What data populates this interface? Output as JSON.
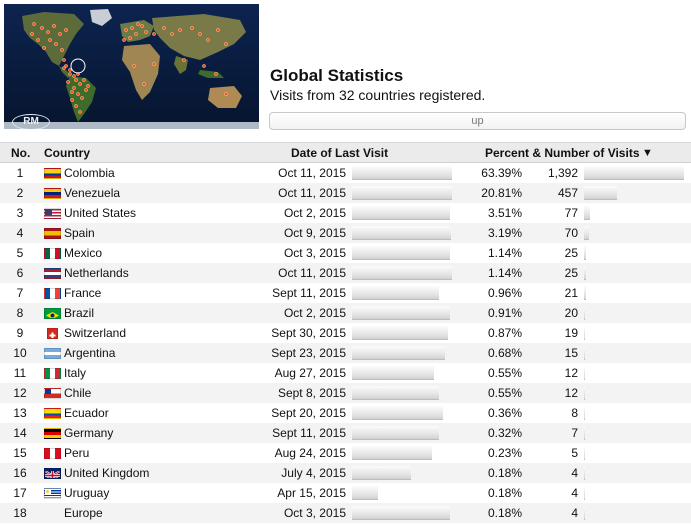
{
  "header": {
    "title": "Global Statistics",
    "subtitle": "Visits from 32 countries registered.",
    "up_button": "up"
  },
  "map": {
    "logo_text": "RM"
  },
  "table": {
    "columns": {
      "no": "No.",
      "country": "Country",
      "date": "Date of Last Visit",
      "percent_visits": "Percent & Number of Visits",
      "sort_icon": "▼"
    },
    "rows": [
      {
        "no": "1",
        "country": "Colombia",
        "flag": "colombia",
        "date": "Oct 11, 2015",
        "recency": 1.0,
        "percent": "63.39%",
        "visits": "1,392",
        "visits_n": 1392
      },
      {
        "no": "2",
        "country": "Venezuela",
        "flag": "venezuela",
        "date": "Oct 11, 2015",
        "recency": 1.0,
        "percent": "20.81%",
        "visits": "457",
        "visits_n": 457
      },
      {
        "no": "3",
        "country": "United States",
        "flag": "usa",
        "date": "Oct 2, 2015",
        "recency": 0.98,
        "percent": "3.51%",
        "visits": "77",
        "visits_n": 77
      },
      {
        "no": "4",
        "country": "Spain",
        "flag": "spain",
        "date": "Oct 9, 2015",
        "recency": 0.99,
        "percent": "3.19%",
        "visits": "70",
        "visits_n": 70
      },
      {
        "no": "5",
        "country": "Mexico",
        "flag": "mexico",
        "date": "Oct 3, 2015",
        "recency": 0.98,
        "percent": "1.14%",
        "visits": "25",
        "visits_n": 25
      },
      {
        "no": "6",
        "country": "Netherlands",
        "flag": "netherlands",
        "date": "Oct 11, 2015",
        "recency": 1.0,
        "percent": "1.14%",
        "visits": "25",
        "visits_n": 25
      },
      {
        "no": "7",
        "country": "France",
        "flag": "france",
        "date": "Sept 11, 2015",
        "recency": 0.87,
        "percent": "0.96%",
        "visits": "21",
        "visits_n": 21
      },
      {
        "no": "8",
        "country": "Brazil",
        "flag": "brazil",
        "date": "Oct 2, 2015",
        "recency": 0.98,
        "percent": "0.91%",
        "visits": "20",
        "visits_n": 20
      },
      {
        "no": "9",
        "country": "Switzerland",
        "flag": "switzerland",
        "date": "Sept 30, 2015",
        "recency": 0.96,
        "percent": "0.87%",
        "visits": "19",
        "visits_n": 19
      },
      {
        "no": "10",
        "country": "Argentina",
        "flag": "argentina",
        "date": "Sept 23, 2015",
        "recency": 0.93,
        "percent": "0.68%",
        "visits": "15",
        "visits_n": 15
      },
      {
        "no": "11",
        "country": "Italy",
        "flag": "italy",
        "date": "Aug 27, 2015",
        "recency": 0.82,
        "percent": "0.55%",
        "visits": "12",
        "visits_n": 12
      },
      {
        "no": "12",
        "country": "Chile",
        "flag": "chile",
        "date": "Sept 8, 2015",
        "recency": 0.87,
        "percent": "0.55%",
        "visits": "12",
        "visits_n": 12
      },
      {
        "no": "13",
        "country": "Ecuador",
        "flag": "ecuador",
        "date": "Sept 20, 2015",
        "recency": 0.91,
        "percent": "0.36%",
        "visits": "8",
        "visits_n": 8
      },
      {
        "no": "14",
        "country": "Germany",
        "flag": "germany",
        "date": "Sept 11, 2015",
        "recency": 0.87,
        "percent": "0.32%",
        "visits": "7",
        "visits_n": 7
      },
      {
        "no": "15",
        "country": "Peru",
        "flag": "peru",
        "date": "Aug 24, 2015",
        "recency": 0.8,
        "percent": "0.23%",
        "visits": "5",
        "visits_n": 5
      },
      {
        "no": "16",
        "country": "United Kingdom",
        "flag": "uk",
        "date": "July 4, 2015",
        "recency": 0.59,
        "percent": "0.18%",
        "visits": "4",
        "visits_n": 4
      },
      {
        "no": "17",
        "country": "Uruguay",
        "flag": "uruguay",
        "date": "Apr 15, 2015",
        "recency": 0.26,
        "percent": "0.18%",
        "visits": "4",
        "visits_n": 4
      },
      {
        "no": "18",
        "country": "Europe",
        "flag": "none",
        "date": "Oct 3, 2015",
        "recency": 0.98,
        "percent": "0.18%",
        "visits": "4",
        "visits_n": 4
      }
    ]
  }
}
